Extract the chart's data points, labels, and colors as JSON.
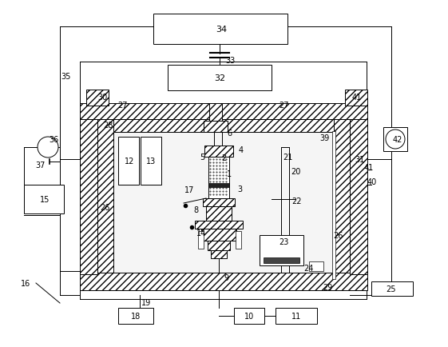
{
  "fig_width": 5.61,
  "fig_height": 4.35,
  "dpi": 100,
  "bg_color": "#ffffff",
  "lc": "#000000",
  "lw": 0.7
}
